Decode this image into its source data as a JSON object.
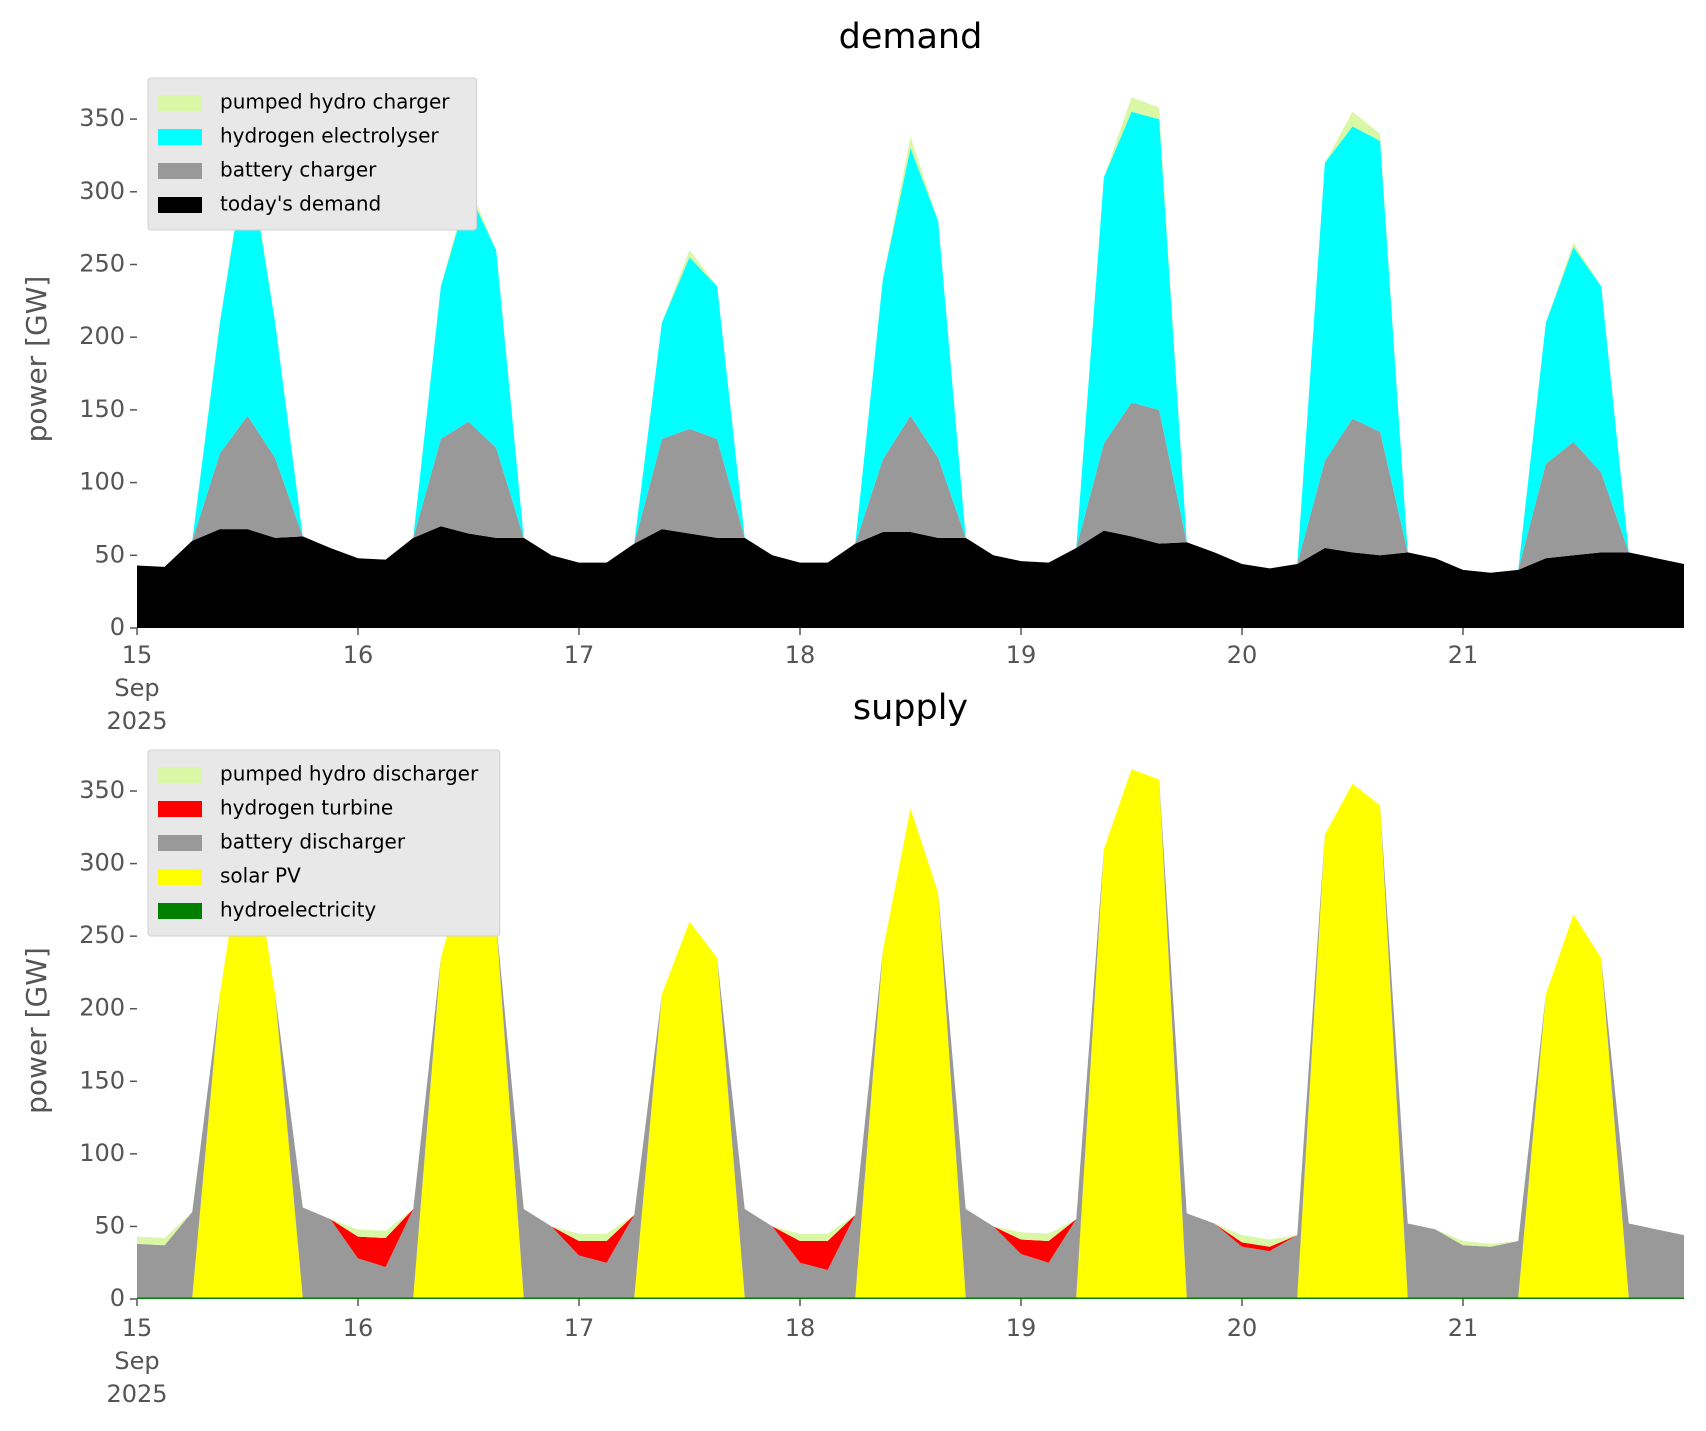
{
  "chart_data": [
    {
      "type": "area",
      "stacked": true,
      "title": "demand",
      "ylabel": "power [GW]",
      "legend": "upper left",
      "x": [
        15,
        15.125,
        15.25,
        15.375,
        15.5,
        15.625,
        15.75,
        15.875,
        16,
        16.125,
        16.25,
        16.375,
        16.5,
        16.625,
        16.75,
        16.875,
        17,
        17.125,
        17.25,
        17.375,
        17.5,
        17.625,
        17.75,
        17.875,
        18,
        18.125,
        18.25,
        18.375,
        18.5,
        18.625,
        18.75,
        18.875,
        19,
        19.125,
        19.25,
        19.375,
        19.5,
        19.625,
        19.75,
        19.875,
        20,
        20.125,
        20.25,
        20.375,
        20.5,
        20.625,
        20.75,
        20.875,
        21,
        21.125,
        21.25,
        21.375,
        21.5,
        21.625,
        21.75,
        21.875,
        22
      ],
      "xlim": [
        15,
        22
      ],
      "xticks": [
        {
          "value": 15,
          "label": "15\nSep\n2025"
        },
        16,
        17,
        18,
        19,
        20,
        21
      ],
      "ylim": [
        0,
        370
      ],
      "yticks": [
        0,
        50,
        100,
        150,
        200,
        250,
        300,
        350
      ],
      "series": [
        {
          "name": "pumped hydro charger",
          "color": "#daf7a6",
          "values": [
            0,
            0,
            0,
            0,
            3,
            0,
            0,
            0,
            0,
            0,
            0,
            0,
            5,
            0,
            0,
            0,
            0,
            0,
            0,
            0,
            5,
            0,
            0,
            0,
            0,
            0,
            0,
            0,
            8,
            0,
            0,
            0,
            0,
            0,
            0,
            0,
            10,
            8,
            0,
            0,
            0,
            0,
            0,
            0,
            10,
            5,
            0,
            0,
            0,
            0,
            0,
            0,
            3,
            0,
            0,
            0,
            0
          ]
        },
        {
          "name": "hydrogen electrolyser",
          "color": "#00ffff",
          "values": [
            0,
            0,
            0,
            90,
            184,
            93,
            0,
            0,
            0,
            0,
            0,
            105,
            158,
            136,
            0,
            0,
            0,
            0,
            0,
            80,
            118,
            105,
            0,
            0,
            0,
            0,
            0,
            124,
            184,
            163,
            0,
            0,
            0,
            0,
            0,
            183,
            200,
            200,
            0,
            0,
            0,
            0,
            0,
            205,
            201,
            200,
            0,
            0,
            0,
            0,
            0,
            97,
            134,
            128,
            0,
            0,
            0
          ]
        },
        {
          "name": "battery charger",
          "color": "#999999",
          "values": [
            0,
            0,
            0,
            52,
            78,
            55,
            0,
            0,
            0,
            0,
            0,
            60,
            77,
            62,
            0,
            0,
            0,
            0,
            0,
            62,
            72,
            68,
            0,
            0,
            0,
            0,
            0,
            50,
            80,
            55,
            0,
            0,
            0,
            0,
            0,
            60,
            92,
            92,
            0,
            0,
            0,
            0,
            0,
            60,
            92,
            85,
            0,
            0,
            0,
            0,
            0,
            65,
            78,
            55,
            0,
            0,
            0
          ]
        },
        {
          "name": "today's demand",
          "color": "#000000",
          "values": [
            43,
            42,
            60,
            68,
            68,
            62,
            63,
            55,
            48,
            47,
            62,
            70,
            65,
            62,
            62,
            50,
            45,
            45,
            58,
            68,
            65,
            62,
            62,
            50,
            45,
            45,
            58,
            66,
            66,
            62,
            62,
            50,
            46,
            45,
            55,
            67,
            63,
            58,
            59,
            52,
            44,
            41,
            44,
            55,
            52,
            50,
            52,
            48,
            40,
            38,
            40,
            48,
            50,
            52,
            52,
            48,
            44
          ]
        }
      ]
    },
    {
      "type": "area",
      "stacked": true,
      "title": "supply",
      "ylabel": "power [GW]",
      "legend": "upper left",
      "x": [
        15,
        15.125,
        15.25,
        15.375,
        15.5,
        15.625,
        15.75,
        15.875,
        16,
        16.125,
        16.25,
        16.375,
        16.5,
        16.625,
        16.75,
        16.875,
        17,
        17.125,
        17.25,
        17.375,
        17.5,
        17.625,
        17.75,
        17.875,
        18,
        18.125,
        18.25,
        18.375,
        18.5,
        18.625,
        18.75,
        18.875,
        19,
        19.125,
        19.25,
        19.375,
        19.5,
        19.625,
        19.75,
        19.875,
        20,
        20.125,
        20.25,
        20.375,
        20.5,
        20.625,
        20.75,
        20.875,
        21,
        21.125,
        21.25,
        21.375,
        21.5,
        21.625,
        21.75,
        21.875,
        22
      ],
      "xlim": [
        15,
        22
      ],
      "xticks": [
        {
          "value": 15,
          "label": "15\nSep\n2025"
        },
        16,
        17,
        18,
        19,
        20,
        21
      ],
      "ylim": [
        0,
        370
      ],
      "yticks": [
        0,
        50,
        100,
        150,
        200,
        250,
        300,
        350
      ],
      "series": [
        {
          "name": "pumped hydro discharger",
          "color": "#daf7a6",
          "values": [
            5,
            5,
            0,
            0,
            0,
            0,
            0,
            0,
            5,
            5,
            0,
            0,
            0,
            0,
            0,
            0,
            5,
            5,
            0,
            0,
            0,
            0,
            0,
            0,
            5,
            5,
            0,
            0,
            0,
            0,
            0,
            0,
            5,
            5,
            0,
            0,
            0,
            0,
            0,
            0,
            5,
            5,
            0,
            0,
            0,
            0,
            0,
            0,
            3,
            2,
            0,
            0,
            0,
            0,
            0,
            0,
            0
          ]
        },
        {
          "name": "hydrogen turbine",
          "color": "#ff0000",
          "values": [
            0,
            0,
            0,
            0,
            0,
            0,
            0,
            0,
            15,
            20,
            0,
            0,
            0,
            0,
            0,
            0,
            10,
            15,
            0,
            0,
            0,
            0,
            0,
            0,
            15,
            20,
            0,
            0,
            0,
            0,
            0,
            0,
            10,
            15,
            0,
            0,
            0,
            0,
            0,
            0,
            3,
            3,
            0,
            0,
            0,
            0,
            0,
            0,
            0,
            0,
            0,
            0,
            0,
            0,
            0,
            0,
            0
          ]
        },
        {
          "name": "battery discharger",
          "color": "#999999",
          "values": [
            37,
            36,
            59,
            0,
            0,
            0,
            62,
            54,
            27,
            21,
            61,
            0,
            0,
            0,
            61,
            49,
            29,
            24,
            57,
            0,
            0,
            0,
            61,
            49,
            24,
            19,
            57,
            0,
            0,
            0,
            61,
            49,
            30,
            24,
            54,
            0,
            0,
            0,
            58,
            51,
            35,
            32,
            43,
            0,
            0,
            0,
            51,
            47,
            36,
            35,
            39,
            0,
            0,
            0,
            51,
            47,
            43
          ]
        },
        {
          "name": "solar PV",
          "color": "#ffff00",
          "values": [
            0,
            0,
            0,
            209,
            332,
            209,
            0,
            0,
            0,
            0,
            0,
            234,
            304,
            259,
            0,
            0,
            0,
            0,
            0,
            209,
            259,
            234,
            0,
            0,
            0,
            0,
            0,
            239,
            337,
            279,
            0,
            0,
            0,
            0,
            0,
            309,
            364,
            357,
            0,
            0,
            0,
            0,
            0,
            319,
            354,
            339,
            0,
            0,
            0,
            0,
            0,
            209,
            264,
            234,
            0,
            0,
            0
          ]
        },
        {
          "name": "hydroelectricity",
          "color": "#008000",
          "values": [
            1,
            1,
            1,
            1,
            1,
            1,
            1,
            1,
            1,
            1,
            1,
            1,
            1,
            1,
            1,
            1,
            1,
            1,
            1,
            1,
            1,
            1,
            1,
            1,
            1,
            1,
            1,
            1,
            1,
            1,
            1,
            1,
            1,
            1,
            1,
            1,
            1,
            1,
            1,
            1,
            1,
            1,
            1,
            1,
            1,
            1,
            1,
            1,
            1,
            1,
            1,
            1,
            1,
            1,
            1,
            1,
            1
          ]
        }
      ]
    }
  ]
}
